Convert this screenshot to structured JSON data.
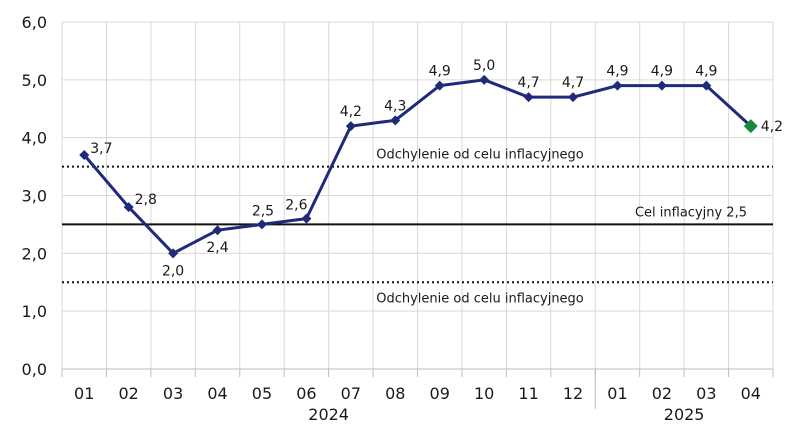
{
  "chart_data": {
    "type": "line",
    "categories": [
      "01",
      "02",
      "03",
      "04",
      "05",
      "06",
      "07",
      "08",
      "09",
      "10",
      "11",
      "12",
      "01",
      "02",
      "03",
      "04"
    ],
    "years": [
      {
        "label": "2024",
        "start": 0,
        "end": 11
      },
      {
        "label": "2025",
        "start": 12,
        "end": 15
      }
    ],
    "series": [
      {
        "values": [
          3.7,
          2.8,
          2.0,
          2.4,
          2.5,
          2.6,
          4.2,
          4.3,
          4.9,
          5.0,
          4.7,
          4.7,
          4.9,
          4.9,
          4.9,
          4.2
        ],
        "labels": [
          "3,7",
          "2,8",
          "2,0",
          "2,4",
          "2,5",
          "2,6",
          "4,2",
          "4,3",
          "4,9",
          "5,0",
          "4,7",
          "4,7",
          "4,9",
          "4,9",
          "4,9",
          "4,2"
        ],
        "color": "#1f2a7a",
        "last_point_color": "#1a8a3a"
      }
    ],
    "ylim": [
      0,
      6
    ],
    "yticks": [
      0,
      1,
      2,
      3,
      4,
      5,
      6
    ],
    "ytick_labels": [
      "0,0",
      "1,0",
      "2,0",
      "3,0",
      "4,0",
      "5,0",
      "6,0"
    ],
    "grid": true,
    "reference_lines": [
      {
        "value": 3.5,
        "style": "dotted",
        "label": "Odchylenie od celu inflacyjnego",
        "label_position": "above"
      },
      {
        "value": 2.5,
        "style": "solid",
        "label": "Cel inflacyjny 2,5",
        "label_position": "above-right"
      },
      {
        "value": 1.5,
        "style": "dotted",
        "label": "Odchylenie od celu inflacyjnego",
        "label_position": "below"
      }
    ]
  }
}
